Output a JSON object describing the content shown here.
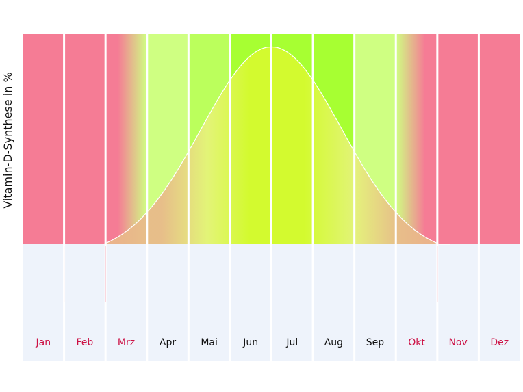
{
  "chart_data": {
    "type": "area",
    "title": "",
    "xlabel": "",
    "ylabel": "Vitamin-D-Synthese in %",
    "ylim": [
      0,
      100
    ],
    "grid": false,
    "legend": "none",
    "categories": [
      "Jan",
      "Feb",
      "Mrz",
      "Apr",
      "Mai",
      "Jun",
      "Jul",
      "Aug",
      "Sep",
      "Okt",
      "Nov",
      "Dez"
    ],
    "month_status": [
      "low",
      "low",
      "transition-up",
      "medium",
      "good",
      "high",
      "high",
      "high",
      "medium",
      "transition-down",
      "low",
      "low"
    ],
    "curve": {
      "peak_month": 6.0,
      "peak_value": 94,
      "spread_months": 1.7,
      "curve_x": [
        1.95,
        2.5,
        3.0,
        3.5,
        4.0,
        4.5,
        5.0,
        5.5,
        6.0,
        6.5,
        7.0,
        7.5,
        8.0,
        8.5,
        9.0,
        9.5,
        10.0,
        10.3
      ],
      "curve_y": [
        0,
        7,
        15,
        26,
        41,
        58,
        73,
        87,
        94,
        87,
        73,
        58,
        41,
        26,
        15,
        7,
        2,
        0
      ]
    },
    "colors": {
      "low": "#f57c95",
      "medium": "#cfff82",
      "good": "#bbff5c",
      "high": "#a7ff32",
      "curve_fill": "#e6f37a",
      "curve_fill_peak": "#d7fa2f",
      "curve_fill_edge": "#e9b98a",
      "curve_line": "#ffffff",
      "label_low": "#cc1144",
      "label_normal": "#111111",
      "cell_bg": "#eef3fb"
    }
  }
}
